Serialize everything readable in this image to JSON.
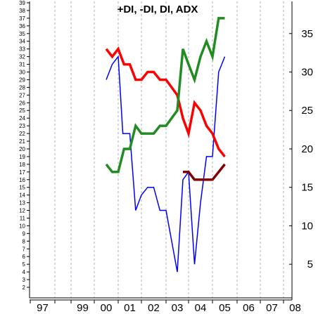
{
  "chart_data": {
    "type": "line",
    "title": "+DI, -DI, DI, ADX",
    "x_ticks": [
      "97",
      "99",
      "00",
      "01",
      "02",
      "03",
      "04",
      "05",
      "06",
      "07",
      "08"
    ],
    "left_axis": {
      "min": 1,
      "max": 39,
      "ticks": [
        2,
        3,
        4,
        5,
        6,
        7,
        8,
        9,
        10,
        11,
        12,
        13,
        14,
        15,
        16,
        17,
        18,
        19,
        20,
        21,
        22,
        23,
        24,
        25,
        26,
        27,
        28,
        29,
        30,
        31,
        32,
        33,
        34,
        35,
        36,
        37,
        38,
        39
      ]
    },
    "right_axis": {
      "ticks": [
        5,
        10,
        15,
        20,
        25,
        30,
        35
      ]
    },
    "grid": {
      "vertical": true,
      "horizontal": false
    },
    "series": [
      {
        "color": "#0000ff",
        "x": [
          2000.5,
          2000.75,
          2001.0,
          2001.2,
          2001.5,
          2001.75,
          2002.0,
          2002.25,
          2002.5,
          2002.75,
          2003.0,
          2003.25,
          2003.5,
          2003.75,
          2004.0,
          2004.25,
          2004.5,
          2004.75,
          2005.0,
          2005.25,
          2005.5
        ],
        "y": [
          29,
          31,
          32,
          22,
          22,
          12,
          14,
          15,
          15,
          12,
          12,
          8,
          4,
          16,
          17,
          5,
          13,
          19,
          19,
          30,
          32
        ]
      },
      {
        "color": "#ff0000",
        "x": [
          2000.5,
          2000.75,
          2001.0,
          2001.25,
          2001.5,
          2001.75,
          2002.0,
          2002.25,
          2002.5,
          2002.75,
          2003.0,
          2003.25,
          2003.5,
          2003.75,
          2004.0,
          2004.25,
          2004.5,
          2004.75,
          2005.0,
          2005.25,
          2005.5
        ],
        "y": [
          33,
          32,
          33,
          31,
          31,
          29,
          29,
          30,
          30,
          29,
          29,
          28,
          27,
          24,
          22,
          26,
          25,
          23,
          22,
          20,
          19
        ]
      },
      {
        "color": "#228b22",
        "x": [
          2000.5,
          2000.75,
          2001.0,
          2001.25,
          2001.5,
          2001.75,
          2002.0,
          2002.25,
          2002.5,
          2002.75,
          2003.0,
          2003.25,
          2003.5,
          2003.75,
          2004.0,
          2004.25,
          2004.5,
          2004.75,
          2005.0,
          2005.25,
          2005.5
        ],
        "y": [
          18,
          17,
          17,
          20,
          20,
          23,
          22,
          22,
          22,
          23,
          23,
          24,
          25,
          33,
          31,
          29,
          32,
          34,
          32,
          37,
          37
        ]
      },
      {
        "color": "#800000",
        "x": [
          2003.75,
          2004.0,
          2004.25,
          2004.5,
          2004.75,
          2005.0,
          2005.25,
          2005.5
        ],
        "y": [
          17,
          17,
          16,
          16,
          16,
          16,
          17,
          18
        ]
      }
    ]
  }
}
